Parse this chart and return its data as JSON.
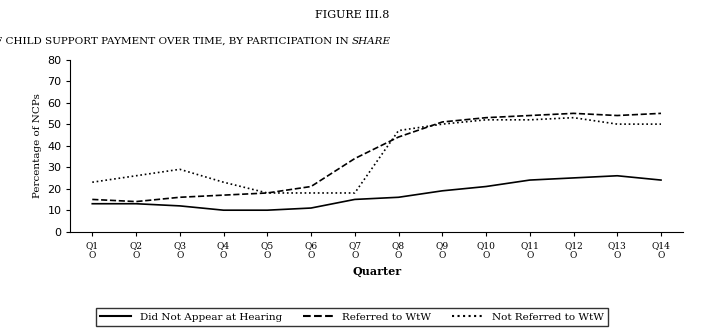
{
  "figure_label": "FIGURE III.8",
  "title_main": "RATES OF CHILD SUPPORT PAYMENT OVER TIME, BY PARTICIPATION IN ",
  "title_italic": "SHARE",
  "xlabel": "Quarter",
  "ylabel": "Percentage of NCPs",
  "ylim": [
    0,
    80
  ],
  "yticks": [
    0,
    10,
    20,
    30,
    40,
    50,
    60,
    70,
    80
  ],
  "x_labels": [
    "Q1\nO",
    "Q2\nO",
    "Q3\nO",
    "Q4\nO",
    "Q5\nO",
    "Q6\nO",
    "Q7\nO",
    "Q8\nO",
    "Q9\nO",
    "Q10\nO",
    "Q11\nO",
    "Q12\nO",
    "Q13\nO",
    "Q14\nO"
  ],
  "did_not_appear": [
    13,
    13,
    12,
    10,
    10,
    11,
    15,
    16,
    19,
    21,
    24,
    25,
    26,
    24
  ],
  "referred_wtw": [
    15,
    14,
    16,
    17,
    18,
    21,
    34,
    44,
    51,
    53,
    54,
    55,
    54,
    55
  ],
  "not_referred_wtw": [
    23,
    26,
    29,
    23,
    18,
    18,
    18,
    47,
    50,
    52,
    52,
    53,
    50,
    50
  ],
  "line_color": "#000000",
  "linewidth": 1.2,
  "background_color": "#ffffff",
  "legend_labels": [
    "Did Not Appear at Hearing",
    "Referred to WtW",
    "Not Referred to WtW"
  ]
}
